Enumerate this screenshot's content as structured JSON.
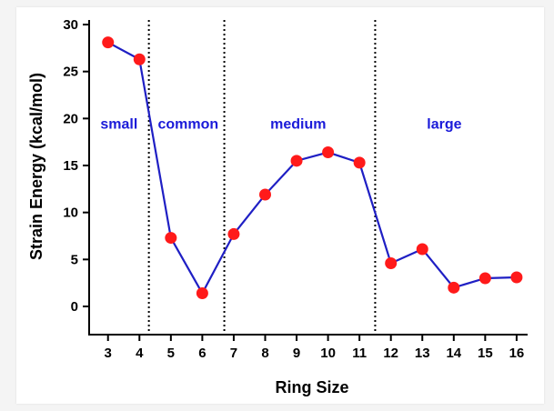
{
  "chart_data": {
    "type": "line",
    "title": "",
    "xlabel": "Ring Size",
    "ylabel": "Strain Energy (kcal/mol)",
    "x": [
      3,
      4,
      5,
      6,
      7,
      8,
      9,
      10,
      11,
      12,
      13,
      14,
      15,
      16
    ],
    "series": [
      {
        "name": "Strain Energy",
        "values": [
          28.1,
          26.3,
          7.3,
          1.4,
          7.7,
          11.9,
          15.5,
          16.4,
          15.3,
          4.6,
          6.1,
          2.0,
          3.0,
          3.1
        ]
      }
    ],
    "xlim": [
      2.4,
      16.35
    ],
    "ylim": [
      -3,
      30
    ],
    "xticks": [
      "3",
      "4",
      "5",
      "6",
      "7",
      "8",
      "9",
      "10",
      "11",
      "12",
      "13",
      "14",
      "15",
      "16"
    ],
    "yticks": [
      "0",
      "5",
      "10",
      "15",
      "20",
      "25",
      "30"
    ],
    "dividers": [
      4.3,
      6.7,
      11.5
    ],
    "regions": [
      {
        "label": "small",
        "x": 3.35
      },
      {
        "label": "common",
        "x": 5.55
      },
      {
        "label": "medium",
        "x": 9.05
      },
      {
        "label": "large",
        "x": 13.7
      }
    ],
    "region_label_y": 19.5,
    "grid": false,
    "colors": {
      "line": "#1f1fc4",
      "marker": "#ff1a1a",
      "region_text": "#1a1ad9"
    }
  }
}
